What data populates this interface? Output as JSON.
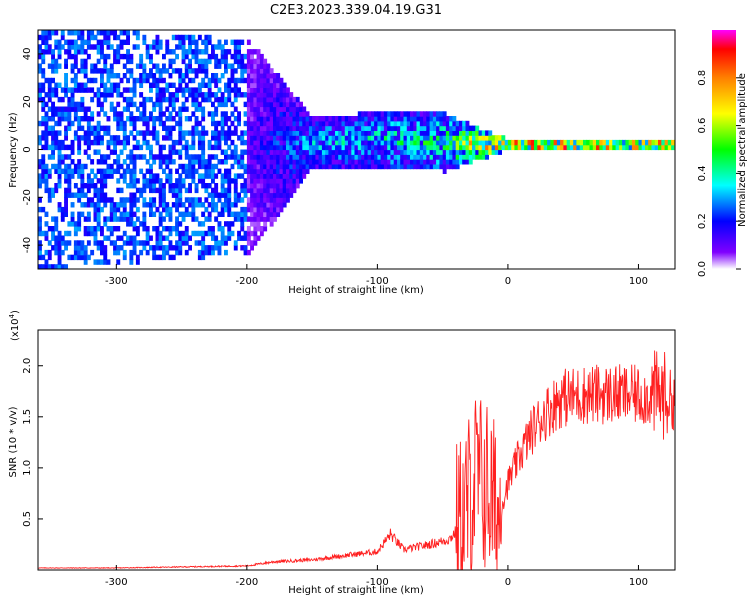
{
  "figure": {
    "title": "C2E3.2023.339.04.19.G31"
  },
  "chart_data": [
    {
      "type": "heatmap",
      "title": "C2E3.2023.339.04.19.G31",
      "xlabel": "Height of straight line (km)",
      "ylabel": "Frequency (Hz)",
      "xlim": [
        -360,
        128
      ],
      "ylim": [
        -50,
        50
      ],
      "x_ticks": [
        -300,
        -200,
        -100,
        0,
        100
      ],
      "y_ticks": [
        -40,
        -20,
        0,
        20,
        40
      ],
      "colorbar": {
        "label": "Normalized spectral amplitude",
        "range": [
          0.0,
          1.0
        ],
        "ticks": [
          "0.0",
          "0.2",
          "0.4",
          "0.6",
          "0.8"
        ],
        "colors": [
          "#ffffff",
          "#8000ff",
          "#0000ff",
          "#00ffff",
          "#00ff00",
          "#ffff00",
          "#ff8000",
          "#ff0000",
          "#ff00ff"
        ]
      },
      "grid": false,
      "description_points": [
        {
          "x": -340,
          "f_center": 0,
          "f_halfwidth": 50,
          "amplitude": 0.15
        },
        {
          "x": -200,
          "f_center": 0,
          "f_halfwidth": 45,
          "amplitude": 0.12
        },
        {
          "x": -150,
          "f_center": 2,
          "f_halfwidth": 10,
          "amplitude": 0.3
        },
        {
          "x": -100,
          "f_center": 3,
          "f_halfwidth": 12,
          "amplitude": 0.35
        },
        {
          "x": -50,
          "f_center": 2,
          "f_halfwidth": 12,
          "amplitude": 0.4
        },
        {
          "x": 0,
          "f_center": 1,
          "f_halfwidth": 2,
          "amplitude": 0.85
        },
        {
          "x": 50,
          "f_center": 1,
          "f_halfwidth": 2,
          "amplitude": 0.9
        },
        {
          "x": 100,
          "f_center": 1,
          "f_halfwidth": 2,
          "amplitude": 0.85
        }
      ]
    },
    {
      "type": "line",
      "xlabel": "Height of straight line (km)",
      "ylabel": "SNR (10 * v/v)",
      "y_scale_note": "(x10",
      "y_scale_exp": "4",
      "xlim": [
        -360,
        128
      ],
      "ylim": [
        0,
        2.35
      ],
      "x_ticks": [
        -300,
        -200,
        -100,
        0,
        100
      ],
      "y_ticks": [
        "0.5",
        "1.0",
        "1.5",
        "2.0"
      ],
      "series": [
        {
          "color": "#ff2020",
          "x": [
            -360,
            -300,
            -250,
            -200,
            -180,
            -150,
            -120,
            -100,
            -90,
            -80,
            -60,
            -45,
            -35,
            -25,
            -15,
            -8,
            0,
            10,
            20,
            30,
            40,
            60,
            80,
            100,
            110,
            118,
            128
          ],
          "y": [
            0.02,
            0.02,
            0.03,
            0.04,
            0.08,
            0.1,
            0.15,
            0.18,
            0.35,
            0.2,
            0.25,
            0.3,
            0.45,
            0.9,
            0.8,
            0.5,
            0.85,
            1.15,
            1.4,
            1.55,
            1.68,
            1.72,
            1.72,
            1.71,
            1.7,
            1.72,
            1.65
          ]
        }
      ]
    }
  ]
}
